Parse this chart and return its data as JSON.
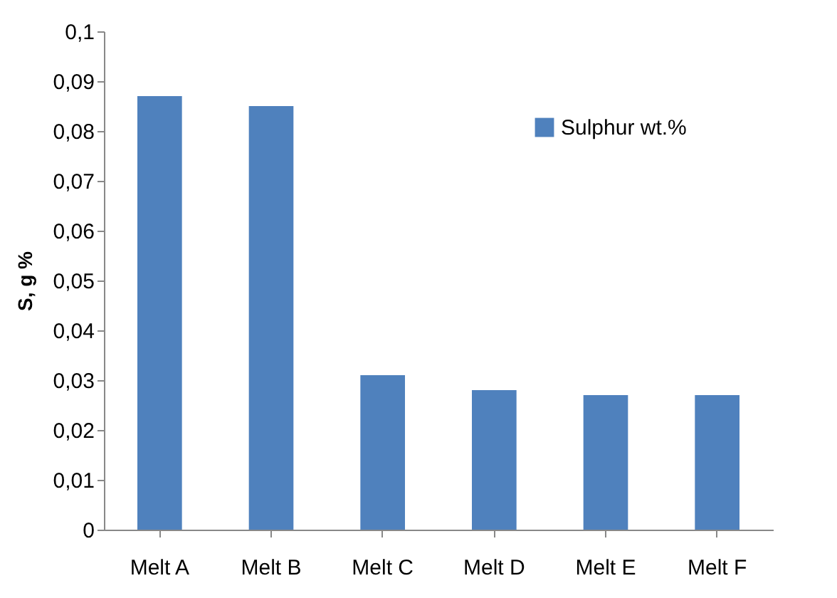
{
  "chart_data": {
    "type": "bar",
    "ylabel": "S, g %",
    "categories": [
      "Melt A",
      "Melt B",
      "Melt C",
      "Melt D",
      "Melt E",
      "Melt F"
    ],
    "series": [
      {
        "name": "Sulphur wt.%",
        "color": "#4f81bd",
        "values": [
          0.087,
          0.085,
          0.031,
          0.028,
          0.027,
          0.027
        ]
      }
    ],
    "ylim": [
      0,
      0.1
    ],
    "yticks": [
      {
        "value": 0,
        "label": "0"
      },
      {
        "value": 0.01,
        "label": "0,01"
      },
      {
        "value": 0.02,
        "label": "0,02"
      },
      {
        "value": 0.03,
        "label": "0,03"
      },
      {
        "value": 0.04,
        "label": "0,04"
      },
      {
        "value": 0.05,
        "label": "0,05"
      },
      {
        "value": 0.06,
        "label": "0,06"
      },
      {
        "value": 0.07,
        "label": "0,07"
      },
      {
        "value": 0.08,
        "label": "0,08"
      },
      {
        "value": 0.09,
        "label": "0,09"
      },
      {
        "value": 0.1,
        "label": "0,1"
      }
    ],
    "legend": "top right"
  }
}
